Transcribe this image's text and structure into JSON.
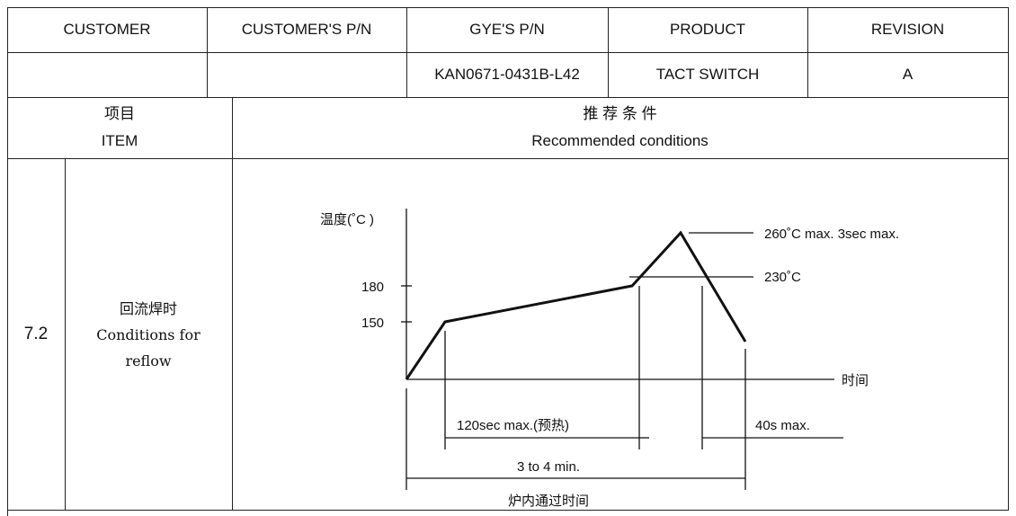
{
  "header_row": {
    "columns": [
      "CUSTOMER",
      "CUSTOMER'S P/N",
      "GYE'S P/N",
      "PRODUCT",
      "REVISION"
    ],
    "values": [
      "",
      "",
      "KAN0671-0431B-L42",
      "TACT SWITCH",
      "A"
    ]
  },
  "spec_header": {
    "item_cn": "项目",
    "item_en": "ITEM",
    "conditions_cn": "推 荐 条 件",
    "conditions_en": "Recommended conditions"
  },
  "spec_row": {
    "number": "7.2",
    "item_cn": "回流焊时",
    "item_en_1": "Conditions for",
    "item_en_2": "reflow"
  },
  "diagram": {
    "y_axis_label": "温度(˚C )",
    "x_axis_label": "时间",
    "y_ticks": [
      "180",
      "150"
    ],
    "peak_label": "260˚C max. 3sec max.",
    "threshold_label": "230˚C",
    "preheat_label": "120sec max.(预热)",
    "above_label": "40s max.",
    "total_label": "3 to 4 min.",
    "total_caption": "炉内通过时间",
    "profile_points_c": [
      [
        "start",
        0
      ],
      [
        "preheat-start",
        150
      ],
      [
        "preheat-end",
        180
      ],
      [
        "peak",
        260
      ],
      [
        "end",
        null
      ]
    ]
  }
}
